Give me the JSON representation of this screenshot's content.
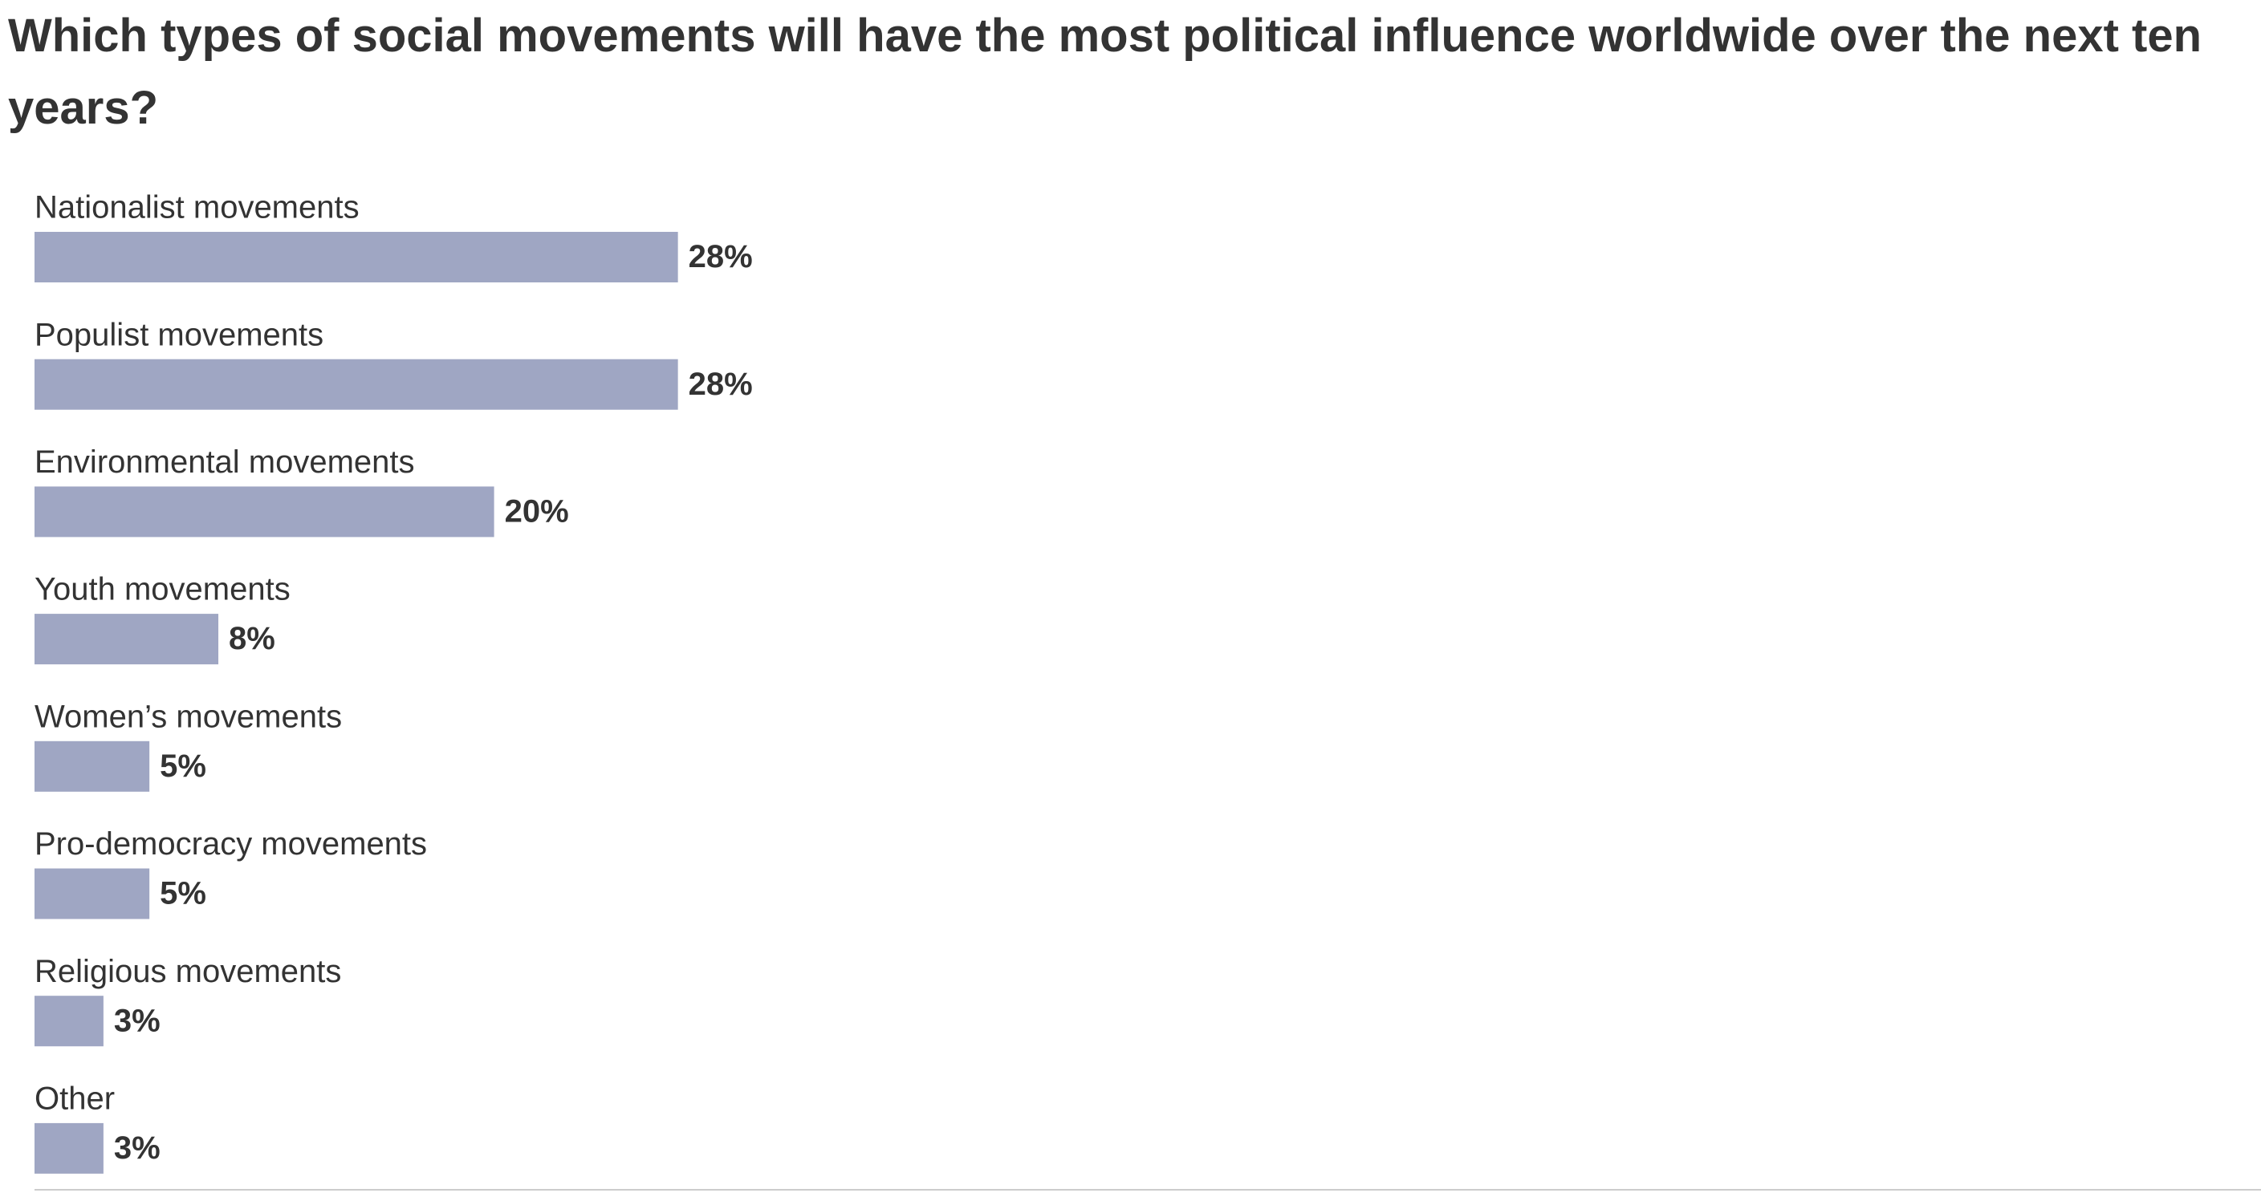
{
  "chart_data": {
    "type": "bar",
    "orientation": "horizontal",
    "title": "Which types of social movements will have the most political influence worldwide over the next ten years?",
    "categories": [
      "Nationalist movements",
      "Populist movements",
      "Environmental movements",
      "Youth movements",
      "Women’s movements",
      "Pro-democracy movements",
      "Religious movements",
      "Other"
    ],
    "values": [
      28,
      28,
      20,
      8,
      5,
      5,
      3,
      3
    ],
    "value_labels": [
      "28%",
      "28%",
      "20%",
      "8%",
      "5%",
      "5%",
      "3%",
      "3%"
    ],
    "color": "#9fa6c3"
  }
}
